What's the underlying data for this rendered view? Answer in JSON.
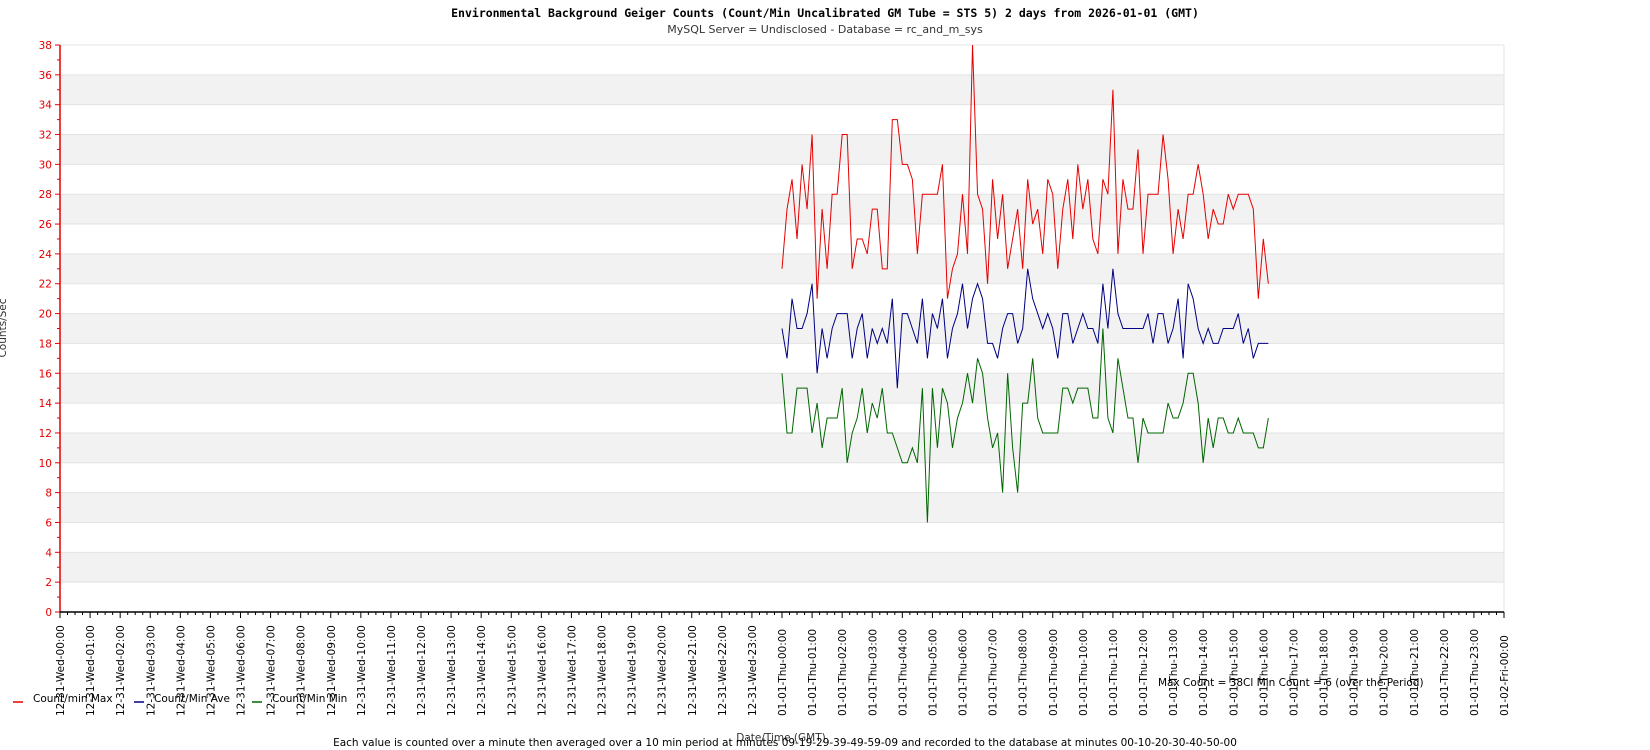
{
  "chart_data": {
    "type": "line",
    "title": "Environmental Background Geiger Counts (Count/Min Uncalibrated GM Tube = STS 5) 2     days from 2026-01-01 (GMT)",
    "subtitle": "MySQL Server = Undisclosed - Database = rc_and_m_sys",
    "ylabel": "Counts/Sec",
    "xlabel": "Date/Time (GMT)",
    "ylim": [
      0,
      38
    ],
    "ytick_step": 2,
    "yticks": [
      "0",
      "2",
      "4",
      "6",
      "8",
      "10",
      "12",
      "14",
      "16",
      "18",
      "20",
      "22",
      "24",
      "26",
      "28",
      "30",
      "32",
      "34",
      "36",
      "38"
    ],
    "xlim": [
      0,
      48
    ],
    "xticks": [
      "12-31-Wed-00:00",
      "12-31-Wed-01:00",
      "12-31-Wed-02:00",
      "12-31-Wed-03:00",
      "12-31-Wed-04:00",
      "12-31-Wed-05:00",
      "12-31-Wed-06:00",
      "12-31-Wed-07:00",
      "12-31-Wed-08:00",
      "12-31-Wed-09:00",
      "12-31-Wed-10:00",
      "12-31-Wed-11:00",
      "12-31-Wed-12:00",
      "12-31-Wed-13:00",
      "12-31-Wed-14:00",
      "12-31-Wed-15:00",
      "12-31-Wed-16:00",
      "12-31-Wed-17:00",
      "12-31-Wed-18:00",
      "12-31-Wed-19:00",
      "12-31-Wed-20:00",
      "12-31-Wed-21:00",
      "12-31-Wed-22:00",
      "12-31-Wed-23:00",
      "01-01-Thu-00:00",
      "01-01-Thu-01:00",
      "01-01-Thu-02:00",
      "01-01-Thu-03:00",
      "01-01-Thu-04:00",
      "01-01-Thu-05:00",
      "01-01-Thu-06:00",
      "01-01-Thu-07:00",
      "01-01-Thu-08:00",
      "01-01-Thu-09:00",
      "01-01-Thu-10:00",
      "01-01-Thu-11:00",
      "01-01-Thu-12:00",
      "01-01-Thu-13:00",
      "01-01-Thu-14:00",
      "01-01-Thu-15:00",
      "01-01-Thu-16:00",
      "01-01-Thu-17:00",
      "01-01-Thu-18:00",
      "01-01-Thu-19:00",
      "01-01-Thu-20:00",
      "01-01-Thu-21:00",
      "01-01-Thu-22:00",
      "01-01-Thu-23:00",
      "01-02-Fri-00:00"
    ],
    "grid": true,
    "legend_position": "bottom-left",
    "x_start": "01-01-Thu-00:00",
    "x_interval": "10 min",
    "series": [
      {
        "name": "Count/min Max",
        "color": "#e60000",
        "values": [
          23,
          27,
          29,
          25,
          30,
          27,
          32,
          21,
          27,
          23,
          28,
          28,
          32,
          32,
          23,
          25,
          25,
          24,
          27,
          27,
          23,
          23,
          33,
          33,
          30,
          30,
          29,
          24,
          28,
          28,
          28,
          28,
          30,
          21,
          23,
          24,
          28,
          24,
          38,
          28,
          27,
          22,
          29,
          25,
          28,
          23,
          25,
          27,
          23,
          29,
          26,
          27,
          24,
          29,
          28,
          23,
          27,
          29,
          25,
          30,
          27,
          29,
          25,
          24,
          29,
          28,
          35,
          24,
          29,
          27,
          27,
          31,
          24,
          28,
          28,
          28,
          32,
          29,
          24,
          27,
          25,
          28,
          28,
          30,
          28,
          25,
          27,
          26,
          26,
          28,
          27,
          28,
          28,
          28,
          27,
          21,
          25,
          22
        ]
      },
      {
        "name": "Count/Min Ave",
        "color": "#000080",
        "values": [
          19,
          17,
          21,
          19,
          19,
          20,
          22,
          16,
          19,
          17,
          19,
          20,
          20,
          20,
          17,
          19,
          20,
          17,
          19,
          18,
          19,
          18,
          21,
          15,
          20,
          20,
          19,
          18,
          21,
          17,
          20,
          19,
          21,
          17,
          19,
          20,
          22,
          19,
          21,
          22,
          21,
          18,
          18,
          17,
          19,
          20,
          20,
          18,
          19,
          23,
          21,
          20,
          19,
          20,
          19,
          17,
          20,
          20,
          18,
          19,
          20,
          19,
          19,
          18,
          22,
          19,
          23,
          20,
          19,
          19,
          19,
          19,
          19,
          20,
          18,
          20,
          20,
          18,
          19,
          21,
          17,
          22,
          21,
          19,
          18,
          19,
          18,
          18,
          19,
          19,
          19,
          20,
          18,
          19,
          17,
          18,
          18,
          18
        ]
      },
      {
        "name": "Count/Min Min",
        "color": "#006600",
        "values": [
          16,
          12,
          12,
          15,
          15,
          15,
          12,
          14,
          11,
          13,
          13,
          13,
          15,
          10,
          12,
          13,
          15,
          12,
          14,
          13,
          15,
          12,
          12,
          11,
          10,
          10,
          11,
          10,
          15,
          6,
          15,
          11,
          15,
          14,
          11,
          13,
          14,
          16,
          14,
          17,
          16,
          13,
          11,
          12,
          8,
          16,
          11,
          8,
          14,
          14,
          17,
          13,
          12,
          12,
          12,
          12,
          15,
          15,
          14,
          15,
          15,
          15,
          13,
          13,
          19,
          13,
          12,
          17,
          15,
          13,
          13,
          10,
          13,
          12,
          12,
          12,
          12,
          14,
          13,
          13,
          14,
          16,
          16,
          14,
          10,
          13,
          11,
          13,
          13,
          12,
          12,
          13,
          12,
          12,
          12,
          11,
          11,
          13
        ]
      }
    ],
    "annotation": "Max Count = 38Cl Min Count = 6 (over the Period)",
    "footnote": "Each value is counted over a minute then averaged over a 10 min period at minutes 09-19-29-39-49-59-09 and recorded to the database at minutes 00-10-20-30-40-50-00"
  }
}
